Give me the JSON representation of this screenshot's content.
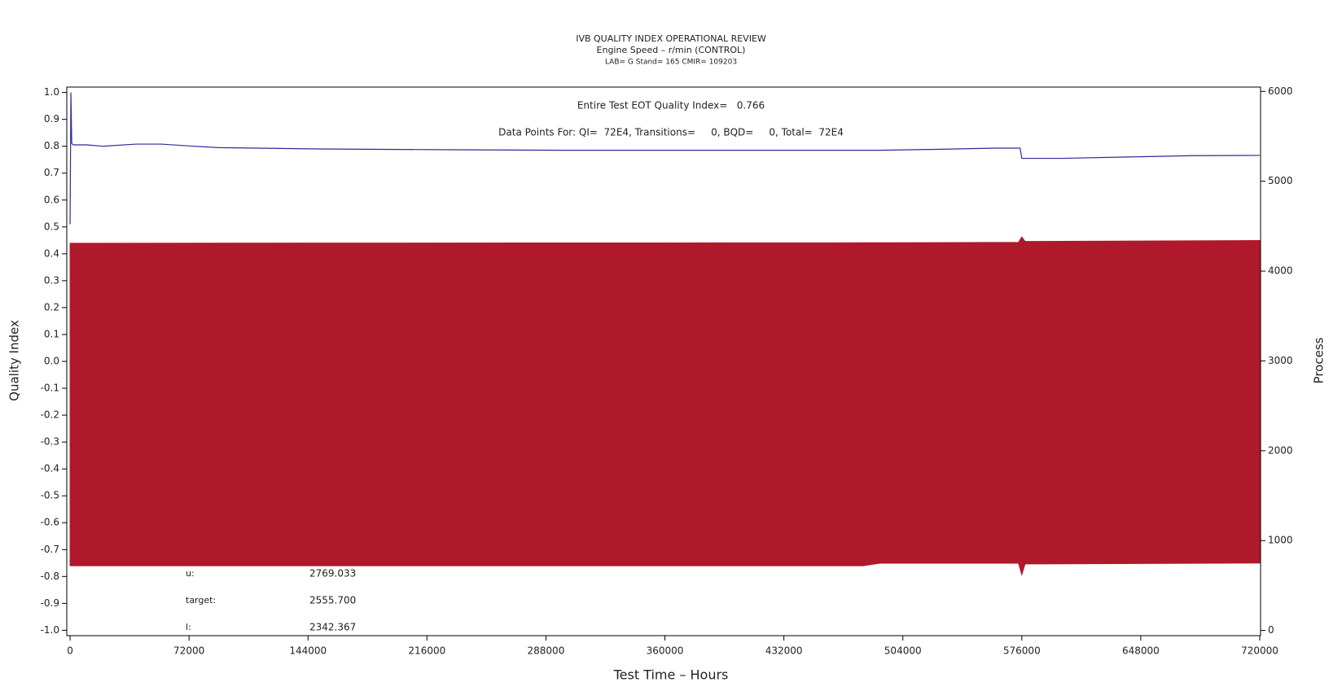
{
  "chart_data": {
    "type": "line",
    "title": "IVB QUALITY INDEX OPERATIONAL REVIEW",
    "subtitle": "Engine Speed – r/min (CONTROL)",
    "subtitle2": "LAB= G Stand= 165 CMIR= 109203",
    "annotations": [
      "Entire Test EOT Quality Index=   0.766",
      "Data Points For: QI=  72E4, Transitions=     0, BQD=     0, Total=  72E4"
    ],
    "stats": [
      {
        "label": "u:",
        "value": "2769.033"
      },
      {
        "label": "target:",
        "value": "2555.700"
      },
      {
        "label": "l:",
        "value": "2342.367"
      }
    ],
    "xlabel": "Test Time – Hours",
    "ylabel": "Quality Index",
    "y2label": "Process",
    "xlim": [
      -2000,
      720500
    ],
    "xticks": [
      0,
      72000,
      144000,
      216000,
      288000,
      360000,
      432000,
      504000,
      576000,
      648000,
      720000
    ],
    "ylim": [
      -1.02,
      1.02
    ],
    "yticks": [
      {
        "value": 1.0,
        "label": "1.0"
      },
      0.9,
      0.8,
      0.7,
      0.6,
      0.5,
      0.4,
      0.3,
      0.2,
      0.1,
      {
        "value": 0.0,
        "label": "0.0"
      },
      -0.1,
      -0.2,
      -0.3,
      -0.4,
      -0.5,
      -0.6,
      -0.7,
      -0.8,
      -0.9,
      {
        "value": -1.0,
        "label": "-1.0"
      }
    ],
    "y2lim": [
      -58,
      6048
    ],
    "y2ticks": [
      0,
      1000,
      2000,
      3000,
      4000,
      5000,
      6000
    ],
    "series": [
      {
        "name": "Quality Index",
        "color": "#2b2b9b",
        "x": [
          0,
          500,
          1000,
          2000,
          10000,
          20000,
          40000,
          55000,
          75000,
          90000,
          150000,
          230000,
          300000,
          490000,
          520000,
          560000,
          575000,
          576000,
          600000,
          640000,
          680000,
          720000
        ],
        "values": [
          0.51,
          1.0,
          0.81,
          0.805,
          0.805,
          0.8,
          0.808,
          0.808,
          0.8,
          0.795,
          0.79,
          0.787,
          0.785,
          0.785,
          0.788,
          0.793,
          0.793,
          0.755,
          0.755,
          0.76,
          0.765,
          0.766
        ]
      }
    ],
    "process_band": {
      "color": "#b0192b",
      "axis": "y2",
      "x": [
        0,
        480000,
        490000,
        574000,
        576000,
        578000,
        720000
      ],
      "upper": [
        4310,
        4315,
        4315,
        4320,
        4380,
        4330,
        4340
      ],
      "lower": [
        720,
        720,
        748,
        748,
        620,
        740,
        750
      ]
    }
  }
}
